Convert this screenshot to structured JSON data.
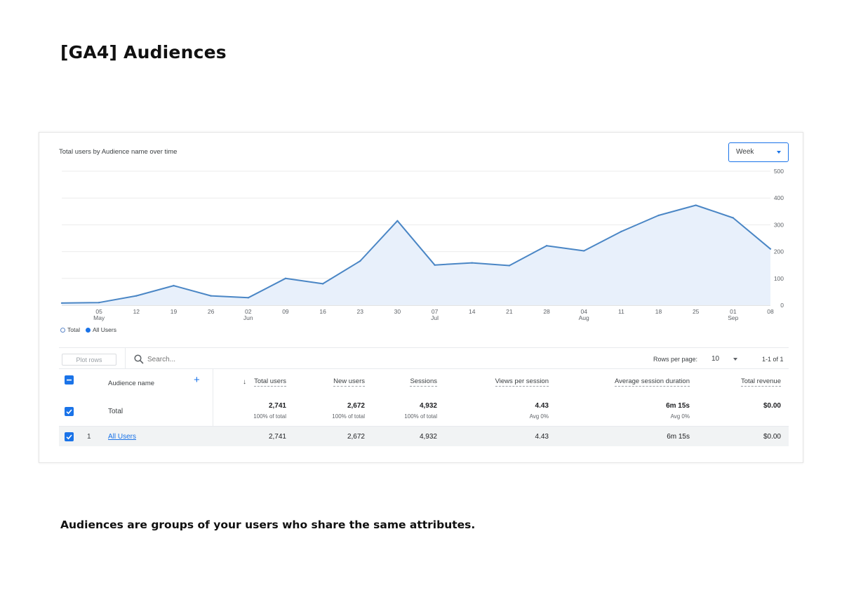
{
  "page": {
    "title": "[GA4] Audiences",
    "footer": "Audiences are groups of your users who share the same attributes."
  },
  "report": {
    "chart_title": "Total users by Audience name over time",
    "granularity": "Week",
    "legend": [
      {
        "name": "Total",
        "style": "hollow"
      },
      {
        "name": "All Users",
        "style": "solid"
      }
    ],
    "colors": {
      "line": "#4a86c5",
      "fill": "#e8f0fb",
      "accent": "#1a73e8"
    }
  },
  "chart_data": {
    "type": "area",
    "x": [
      "Apr 28",
      "May 05",
      "May 12",
      "May 19",
      "May 26",
      "Jun 02",
      "Jun 09",
      "Jun 16",
      "Jun 23",
      "Jun 30",
      "Jul 07",
      "Jul 14",
      "Jul 21",
      "Jul 28",
      "Aug 04",
      "Aug 11",
      "Aug 18",
      "Aug 25",
      "Sep 01",
      "Sep 08"
    ],
    "x_tick_labels": [
      {
        "day": "05",
        "month": "May"
      },
      {
        "day": "12",
        "month": ""
      },
      {
        "day": "19",
        "month": ""
      },
      {
        "day": "26",
        "month": ""
      },
      {
        "day": "02",
        "month": "Jun"
      },
      {
        "day": "09",
        "month": ""
      },
      {
        "day": "16",
        "month": ""
      },
      {
        "day": "23",
        "month": ""
      },
      {
        "day": "30",
        "month": ""
      },
      {
        "day": "07",
        "month": "Jul"
      },
      {
        "day": "14",
        "month": ""
      },
      {
        "day": "21",
        "month": ""
      },
      {
        "day": "28",
        "month": ""
      },
      {
        "day": "04",
        "month": "Aug"
      },
      {
        "day": "11",
        "month": ""
      },
      {
        "day": "18",
        "month": ""
      },
      {
        "day": "25",
        "month": ""
      },
      {
        "day": "01",
        "month": "Sep"
      },
      {
        "day": "08",
        "month": ""
      }
    ],
    "series": [
      {
        "name": "All Users",
        "values": [
          8,
          10,
          35,
          73,
          35,
          28,
          100,
          80,
          165,
          315,
          150,
          158,
          148,
          222,
          203,
          275,
          335,
          373,
          326,
          210
        ]
      }
    ],
    "y_ticks": [
      0,
      100,
      200,
      300,
      400,
      500
    ],
    "ylim": [
      0,
      500
    ],
    "y_axis_side": "right",
    "grid": true
  },
  "toolbar": {
    "plot_rows": "Plot rows",
    "search_placeholder": "Search...",
    "rows_per_page_label": "Rows per page:",
    "rows_per_page": "10",
    "pagination": "1-1 of 1"
  },
  "table": {
    "dimension_header": "Audience name",
    "columns": [
      "Total users",
      "New users",
      "Sessions",
      "Views per session",
      "Average session duration",
      "Total revenue"
    ],
    "sort_indicator": "↓",
    "total": {
      "label": "Total",
      "values": [
        "2,741",
        "2,672",
        "4,932",
        "4.43",
        "6m 15s",
        "$0.00"
      ],
      "subs": [
        "100% of total",
        "100% of total",
        "100% of total",
        "Avg 0%",
        "Avg 0%",
        ""
      ]
    },
    "rows": [
      {
        "index": "1",
        "name": "All Users",
        "values": [
          "2,741",
          "2,672",
          "4,932",
          "4.43",
          "6m 15s",
          "$0.00"
        ]
      }
    ]
  }
}
